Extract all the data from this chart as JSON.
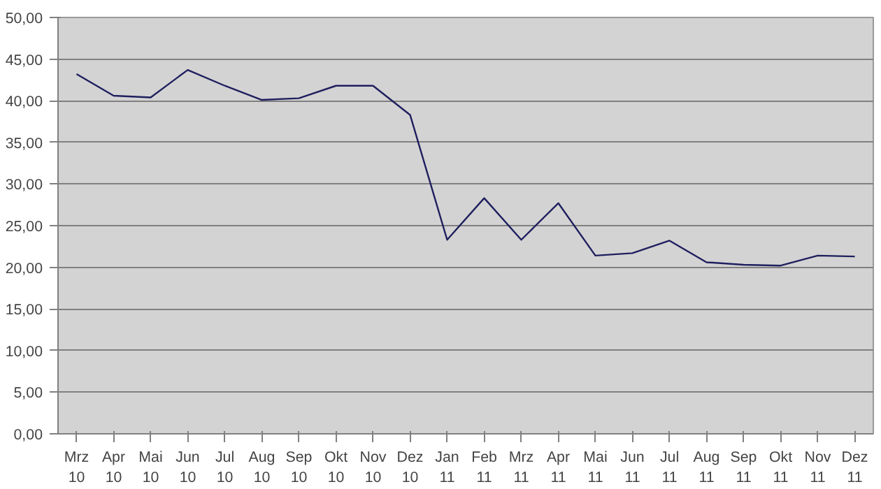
{
  "chart_data": {
    "type": "line",
    "categories": [
      "Mrz\n10",
      "Apr\n10",
      "Mai\n10",
      "Jun\n10",
      "Jul\n10",
      "Aug\n10",
      "Sep\n10",
      "Okt\n10",
      "Nov\n10",
      "Dez\n10",
      "Jan\n11",
      "Feb\n11",
      "Mrz\n11",
      "Apr\n11",
      "Mai\n11",
      "Jun\n11",
      "Jul\n11",
      "Aug\n11",
      "Sep\n11",
      "Okt\n11",
      "Nov\n11",
      "Dez\n11"
    ],
    "series": [
      {
        "color": "#1f1f5f",
        "values": [
          43.2,
          40.6,
          40.4,
          43.7,
          41.8,
          40.1,
          40.3,
          41.8,
          41.8,
          38.3,
          23.3,
          28.3,
          23.3,
          27.7,
          21.4,
          21.7,
          23.2,
          20.6,
          20.3,
          20.2,
          21.4,
          21.3
        ]
      }
    ],
    "ylim": [
      0,
      50
    ],
    "yticks": [
      {
        "value": 0,
        "label": "0,00"
      },
      {
        "value": 5,
        "label": "5,00"
      },
      {
        "value": 10,
        "label": "10,00"
      },
      {
        "value": 15,
        "label": "15,00"
      },
      {
        "value": 20,
        "label": "20,00"
      },
      {
        "value": 25,
        "label": "25,00"
      },
      {
        "value": 30,
        "label": "30,00"
      },
      {
        "value": 35,
        "label": "35,00"
      },
      {
        "value": 40,
        "label": "40,00"
      },
      {
        "value": 45,
        "label": "45,00"
      },
      {
        "value": 50,
        "label": "50,00"
      }
    ],
    "grid": "y",
    "marker": "none",
    "line_style": "solid"
  }
}
